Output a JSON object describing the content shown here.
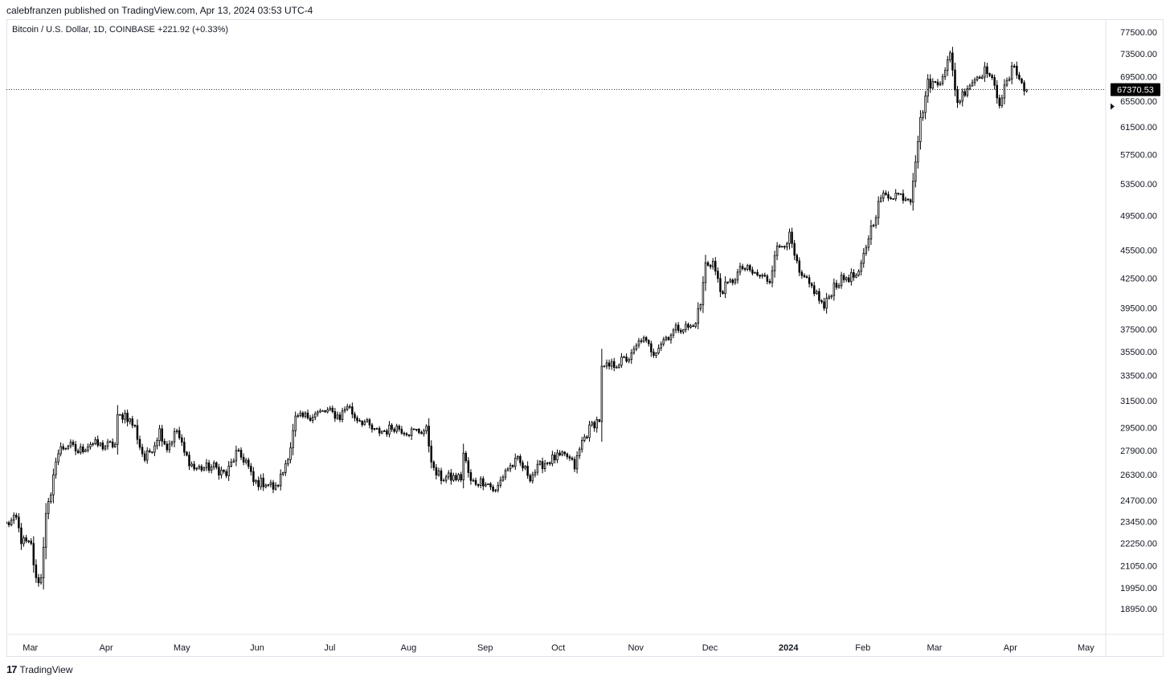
{
  "header": {
    "publish_line": "calebfranzen published on TradingView.com, Apr 13, 2024 03:53 UTC-4"
  },
  "symbol_line": "Bitcoin / U.S. Dollar, 1D, COINBASE  +221.92 (+0.33%)",
  "footer": {
    "brand": "TradingView",
    "logo_glyph": "17"
  },
  "chart_data": {
    "type": "candlestick",
    "title": "Bitcoin / U.S. Dollar, 1D, COINBASE",
    "change": "+221.92 (+0.33%)",
    "last_price": 67370.53,
    "last_price_label": "67370.53",
    "y_scale": "log",
    "ylim": [
      17800,
      80000
    ],
    "y_ticks": [
      "77500.00",
      "73500.00",
      "69500.00",
      "65500.00",
      "61500.00",
      "57500.00",
      "53500.00",
      "49500.00",
      "45500.00",
      "42500.00",
      "39500.00",
      "37500.00",
      "35500.00",
      "33500.00",
      "31500.00",
      "29500.00",
      "27900.00",
      "26300.00",
      "24700.00",
      "23450.00",
      "22250.00",
      "21050.00",
      "19950.00",
      "18950.00"
    ],
    "x_ticks": [
      {
        "label": "Mar",
        "date": "2023-03-01"
      },
      {
        "label": "Apr",
        "date": "2023-04-01"
      },
      {
        "label": "May",
        "date": "2023-05-01"
      },
      {
        "label": "Jun",
        "date": "2023-06-01"
      },
      {
        "label": "Jul",
        "date": "2023-07-01"
      },
      {
        "label": "Aug",
        "date": "2023-08-01"
      },
      {
        "label": "Sep",
        "date": "2023-09-01"
      },
      {
        "label": "Oct",
        "date": "2023-10-01"
      },
      {
        "label": "Nov",
        "date": "2023-11-01"
      },
      {
        "label": "Dec",
        "date": "2023-12-01"
      },
      {
        "label": "2024",
        "date": "2024-01-01",
        "bold": true
      },
      {
        "label": "Feb",
        "date": "2024-02-01"
      },
      {
        "label": "Mar",
        "date": "2024-03-01"
      },
      {
        "label": "Apr",
        "date": "2024-04-01"
      },
      {
        "label": "May",
        "date": "2024-05-01"
      }
    ],
    "xlim": [
      "2023-02-25",
      "2024-05-15"
    ],
    "close_path": [
      [
        "2023-02-25",
        23300
      ],
      [
        "2023-03-01",
        23600
      ],
      [
        "2023-03-03",
        22400
      ],
      [
        "2023-03-07",
        22100
      ],
      [
        "2023-03-09",
        20300
      ],
      [
        "2023-03-11",
        20400
      ],
      [
        "2023-03-13",
        24100
      ],
      [
        "2023-03-15",
        24800
      ],
      [
        "2023-03-17",
        27400
      ],
      [
        "2023-03-19",
        28000
      ],
      [
        "2023-03-22",
        28300
      ],
      [
        "2023-03-26",
        27800
      ],
      [
        "2023-03-31",
        28400
      ],
      [
        "2023-04-05",
        28200
      ],
      [
        "2023-04-10",
        28300
      ],
      [
        "2023-04-11",
        30200
      ],
      [
        "2023-04-14",
        30500
      ],
      [
        "2023-04-18",
        29500
      ],
      [
        "2023-04-20",
        28200
      ],
      [
        "2023-04-22",
        27300
      ],
      [
        "2023-04-26",
        28400
      ],
      [
        "2023-04-28",
        29300
      ],
      [
        "2023-05-01",
        28100
      ],
      [
        "2023-05-05",
        29300
      ],
      [
        "2023-05-08",
        27700
      ],
      [
        "2023-05-12",
        26700
      ],
      [
        "2023-05-20",
        26800
      ],
      [
        "2023-05-25",
        26300
      ],
      [
        "2023-05-29",
        27700
      ],
      [
        "2023-06-02",
        27200
      ],
      [
        "2023-06-05",
        25800
      ],
      [
        "2023-06-10",
        25800
      ],
      [
        "2023-06-14",
        25400
      ],
      [
        "2023-06-17",
        26500
      ],
      [
        "2023-06-20",
        28200
      ],
      [
        "2023-06-22",
        30100
      ],
      [
        "2023-06-26",
        30300
      ],
      [
        "2023-06-30",
        30500
      ],
      [
        "2023-07-05",
        30700
      ],
      [
        "2023-07-10",
        30300
      ],
      [
        "2023-07-13",
        31200
      ],
      [
        "2023-07-16",
        30300
      ],
      [
        "2023-07-20",
        29900
      ],
      [
        "2023-07-24",
        29200
      ],
      [
        "2023-07-29",
        29300
      ],
      [
        "2023-08-01",
        29600
      ],
      [
        "2023-08-07",
        29200
      ],
      [
        "2023-08-14",
        29300
      ],
      [
        "2023-08-17",
        26500
      ],
      [
        "2023-08-20",
        26100
      ],
      [
        "2023-08-28",
        26100
      ],
      [
        "2023-08-29",
        27700
      ],
      [
        "2023-09-01",
        25800
      ],
      [
        "2023-09-07",
        25900
      ],
      [
        "2023-09-11",
        25200
      ],
      [
        "2023-09-15",
        26600
      ],
      [
        "2023-09-20",
        27200
      ],
      [
        "2023-09-25",
        26200
      ],
      [
        "2023-09-30",
        27000
      ],
      [
        "2023-10-05",
        27400
      ],
      [
        "2023-10-10",
        27500
      ],
      [
        "2023-10-13",
        26800
      ],
      [
        "2023-10-16",
        28500
      ],
      [
        "2023-10-20",
        29700
      ],
      [
        "2023-10-23",
        30100
      ],
      [
        "2023-10-24",
        34000
      ],
      [
        "2023-10-31",
        34600
      ],
      [
        "2023-11-05",
        35100
      ],
      [
        "2023-11-09",
        36700
      ],
      [
        "2023-11-14",
        35500
      ],
      [
        "2023-11-18",
        36600
      ],
      [
        "2023-11-24",
        37700
      ],
      [
        "2023-11-30",
        37700
      ],
      [
        "2023-12-03",
        39900
      ],
      [
        "2023-12-05",
        44000
      ],
      [
        "2023-12-08",
        44200
      ],
      [
        "2023-12-11",
        41200
      ],
      [
        "2023-12-15",
        42000
      ],
      [
        "2023-12-20",
        43600
      ],
      [
        "2023-12-25",
        42900
      ],
      [
        "2023-12-31",
        42300
      ],
      [
        "2024-01-02",
        45300
      ],
      [
        "2024-01-08",
        47000
      ],
      [
        "2024-01-12",
        42800
      ],
      [
        "2024-01-18",
        41300
      ],
      [
        "2024-01-22",
        39500
      ],
      [
        "2024-01-26",
        41800
      ],
      [
        "2024-01-31",
        42600
      ],
      [
        "2024-02-05",
        42700
      ],
      [
        "2024-02-09",
        47100
      ],
      [
        "2024-02-14",
        51800
      ],
      [
        "2024-02-20",
        52200
      ],
      [
        "2024-02-26",
        51700
      ],
      [
        "2024-02-28",
        57000
      ],
      [
        "2024-03-01",
        62400
      ],
      [
        "2024-03-04",
        68400
      ],
      [
        "2024-03-08",
        68300
      ],
      [
        "2024-03-13",
        73100
      ],
      [
        "2024-03-16",
        65300
      ],
      [
        "2024-03-20",
        67900
      ],
      [
        "2024-03-25",
        70000
      ],
      [
        "2024-03-28",
        70800
      ],
      [
        "2024-04-02",
        65500
      ],
      [
        "2024-04-06",
        69400
      ],
      [
        "2024-04-08",
        71700
      ],
      [
        "2024-04-12",
        67150
      ],
      [
        "2024-04-13",
        67370.53
      ]
    ]
  }
}
